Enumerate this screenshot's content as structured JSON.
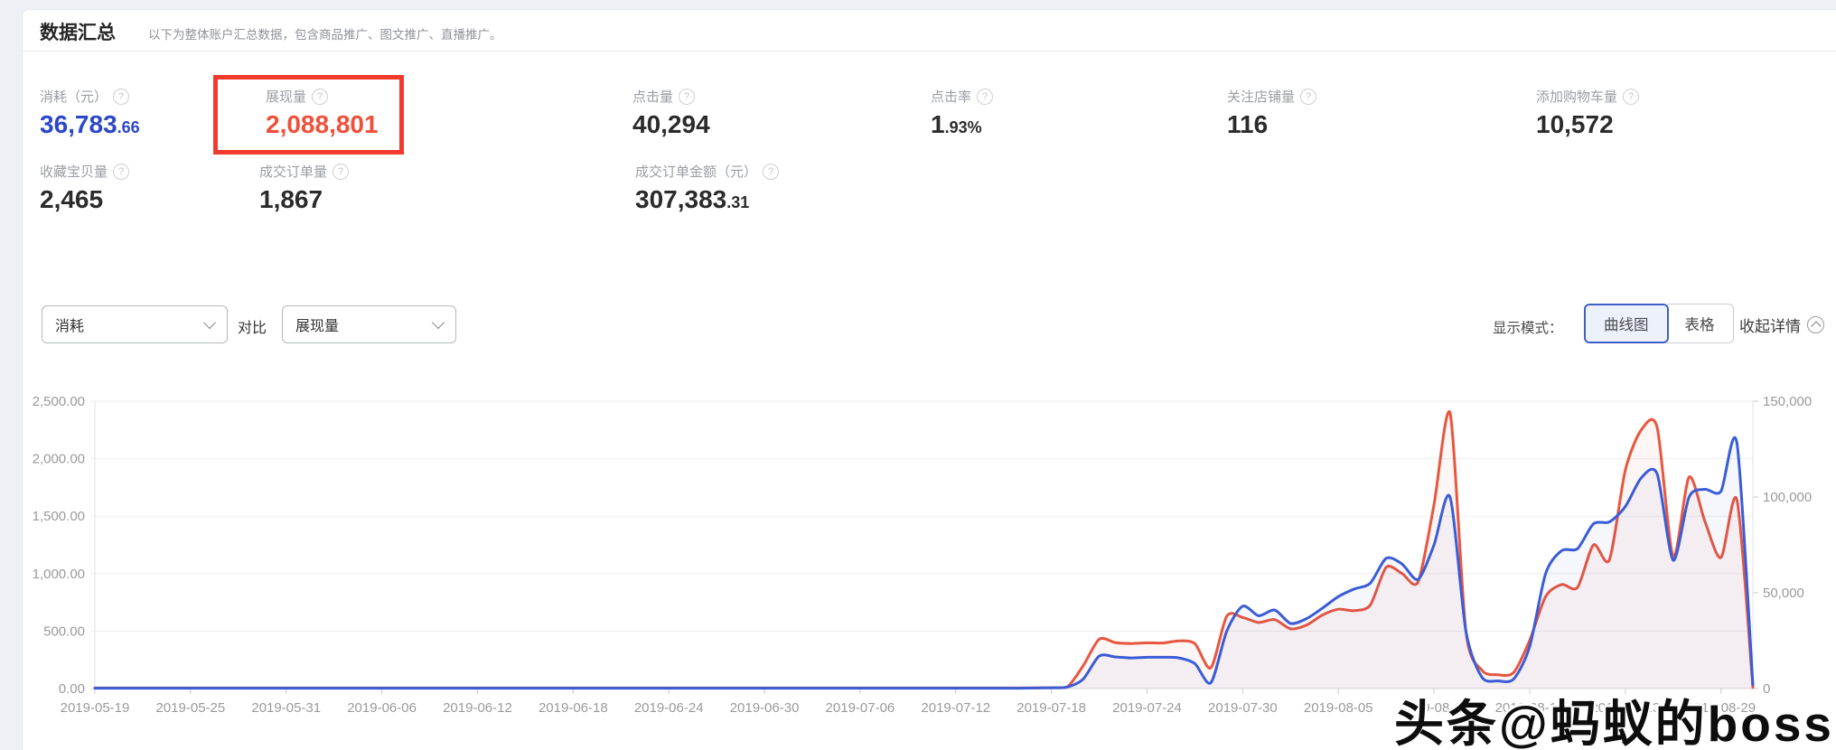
{
  "header": {
    "title": "数据汇总",
    "subtitle": "以下为整体账户汇总数据，包含商品推广、图文推广、直播推广。"
  },
  "icons": {
    "help": "?",
    "collapse_chevron": "chevron-up-circle",
    "select_chevron": "chevron-down"
  },
  "metrics": {
    "row1": [
      {
        "label": "消耗（元）",
        "value": "36,783",
        "decimal": ".66",
        "color": "#2b48c8"
      },
      {
        "label": "展现量",
        "value": "2,088,801",
        "decimal": "",
        "color": "#f0503a",
        "highlighted": true
      },
      {
        "label": "点击量",
        "value": "40,294",
        "decimal": "",
        "color": "#2b2b2b"
      },
      {
        "label": "点击率",
        "value": "1",
        "decimal": ".93%",
        "color": "#2b2b2b"
      },
      {
        "label": "关注店铺量",
        "value": "116",
        "decimal": "",
        "color": "#2b2b2b"
      },
      {
        "label": "添加购物车量",
        "value": "10,572",
        "decimal": "",
        "color": "#2b2b2b"
      }
    ],
    "row2": [
      {
        "label": "收藏宝贝量",
        "value": "2,465",
        "decimal": "",
        "color": "#2b2b2b"
      },
      {
        "label": "成交订单量",
        "value": "1,867",
        "decimal": "",
        "color": "#2b2b2b"
      },
      {
        "label": "成交订单金额（元）",
        "value": "307,383",
        "decimal": ".31",
        "color": "#2b2b2b"
      }
    ]
  },
  "annotation": {
    "highlight_box_color": "#f23a2c",
    "highlighted_metric": "展现量"
  },
  "controls": {
    "primary_select": "消耗",
    "compare_label": "对比",
    "secondary_select": "展现量",
    "display_mode_label": "显示模式：",
    "mode_curve": "曲线图",
    "mode_table": "表格",
    "selected_mode": "曲线图",
    "collapse_label": "收起详情"
  },
  "watermark": "头条@蚂蚁的boss",
  "chart_data": {
    "type": "line",
    "grid": true,
    "legend": "none",
    "x_label_step_days": 6,
    "x_labels": [
      "2019-05-19",
      "2019-05-25",
      "2019-05-31",
      "2019-06-06",
      "2019-06-12",
      "2019-06-18",
      "2019-06-24",
      "2019-06-30",
      "2019-07-06",
      "2019-07-12",
      "2019-07-18",
      "2019-07-24",
      "2019-07-30",
      "2019-08-05",
      "2019-08-11",
      "2019-08-17",
      "2019-08-23",
      "2019-08-29"
    ],
    "left_axis": {
      "name": "消耗",
      "min": 0,
      "max": 2500,
      "ticks": [
        "2,500.00",
        "2,000.00",
        "1,500.00",
        "1,000.00",
        "500.00",
        "0.00"
      ]
    },
    "right_axis": {
      "name": "展现量",
      "min": 0,
      "max": 150000,
      "ticks": [
        "150,000",
        "100,000",
        "50,000",
        "0"
      ]
    },
    "series": [
      {
        "name": "消耗",
        "axis": "left",
        "color": "#e8563f",
        "fill": "rgba(232,86,63,0.055)",
        "values": [
          5,
          5,
          5,
          5,
          5,
          5,
          5,
          5,
          5,
          5,
          5,
          5,
          5,
          5,
          5,
          5,
          5,
          5,
          5,
          5,
          5,
          5,
          5,
          5,
          5,
          5,
          5,
          5,
          5,
          5,
          5,
          5,
          5,
          5,
          5,
          5,
          5,
          5,
          5,
          5,
          5,
          5,
          5,
          5,
          5,
          5,
          5,
          5,
          5,
          5,
          5,
          5,
          5,
          5,
          5,
          5,
          5,
          5,
          5,
          6,
          8,
          15,
          200,
          430,
          400,
          392,
          398,
          396,
          415,
          390,
          180,
          630,
          618,
          575,
          600,
          520,
          552,
          640,
          690,
          678,
          726,
          1055,
          1000,
          930,
          1600,
          2400,
          500,
          160,
          120,
          140,
          420,
          800,
          905,
          880,
          1250,
          1120,
          1900,
          2250,
          2270,
          1150,
          1840,
          1450,
          1140,
          1640,
          10
        ]
      },
      {
        "name": "展现量",
        "axis": "right",
        "color": "#3a5cd6",
        "fill": "rgba(58,92,214,0.05)",
        "values": [
          200,
          200,
          200,
          200,
          200,
          200,
          200,
          200,
          200,
          200,
          200,
          200,
          200,
          200,
          200,
          200,
          200,
          200,
          200,
          200,
          200,
          200,
          200,
          200,
          200,
          200,
          200,
          200,
          200,
          200,
          200,
          200,
          200,
          200,
          200,
          200,
          200,
          200,
          200,
          200,
          200,
          200,
          200,
          200,
          200,
          200,
          200,
          200,
          200,
          200,
          200,
          200,
          200,
          200,
          200,
          200,
          200,
          200,
          200,
          300,
          400,
          800,
          5000,
          17000,
          16500,
          16000,
          16300,
          16300,
          16000,
          13000,
          3000,
          30000,
          43000,
          38000,
          41000,
          34000,
          36500,
          42000,
          48000,
          52000,
          55000,
          68000,
          65000,
          57000,
          75000,
          100000,
          30000,
          6000,
          4000,
          5000,
          22000,
          60000,
          72000,
          73000,
          86000,
          87000,
          95000,
          110000,
          112000,
          67000,
          100000,
          104000,
          103000,
          128000,
          2000
        ]
      }
    ]
  }
}
